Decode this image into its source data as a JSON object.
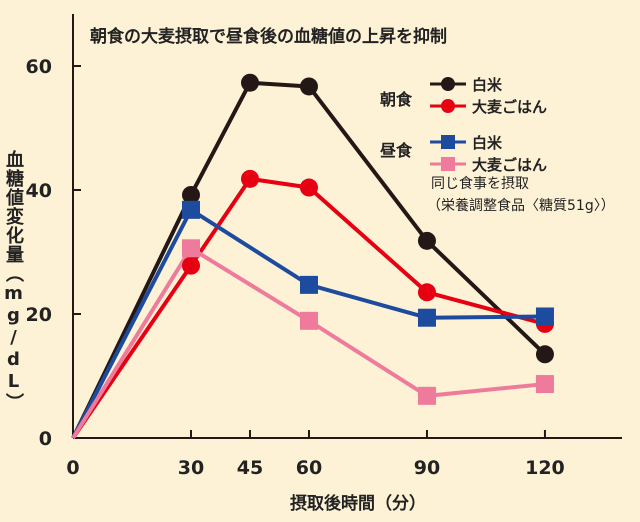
{
  "chart_data": {
    "type": "line",
    "title": "朝食の大麦摂取で昼食後の血糖値の上昇を抑制",
    "xlabel": "摂取後時間（分）",
    "ylabel": "血糖値変化量（mg/dL）",
    "x": [
      0,
      30,
      45,
      60,
      90,
      120
    ],
    "xticks": [
      0,
      30,
      45,
      60,
      90,
      120
    ],
    "yticks": [
      0,
      20,
      40,
      60
    ],
    "xlim": [
      0,
      145
    ],
    "ylim": [
      0,
      68
    ],
    "legend_groups": [
      {
        "label": "朝食",
        "items": [
          0,
          1
        ]
      },
      {
        "label": "昼食",
        "items": [
          2,
          3
        ]
      }
    ],
    "series": [
      {
        "name": "白米",
        "group": "朝食",
        "marker": "circle",
        "color": "#231815",
        "x": [
          0,
          30,
          45,
          60,
          90,
          120
        ],
        "values": [
          0,
          39.2,
          57.3,
          56.7,
          31.8,
          13.5
        ]
      },
      {
        "name": "大麦ごはん",
        "group": "朝食",
        "marker": "circle",
        "color": "#e60012",
        "x": [
          0,
          30,
          45,
          60,
          90,
          120
        ],
        "values": [
          0,
          27.8,
          41.8,
          40.4,
          23.5,
          18.4
        ]
      },
      {
        "name": "白米",
        "group": "昼食",
        "marker": "square",
        "color": "#1d4b9e",
        "x": [
          0,
          30,
          60,
          90,
          120
        ],
        "values": [
          0,
          36.8,
          24.7,
          19.4,
          19.6
        ]
      },
      {
        "name": "大麦ごはん",
        "group": "昼食",
        "marker": "square",
        "color": "#ee7b9b",
        "x": [
          0,
          30,
          60,
          90,
          120
        ],
        "values": [
          0,
          30.6,
          18.9,
          6.8,
          8.7
        ]
      }
    ],
    "annotation": [
      "同じ食事を摂取",
      "（栄養調整食品〈糖質51g〉）"
    ]
  }
}
